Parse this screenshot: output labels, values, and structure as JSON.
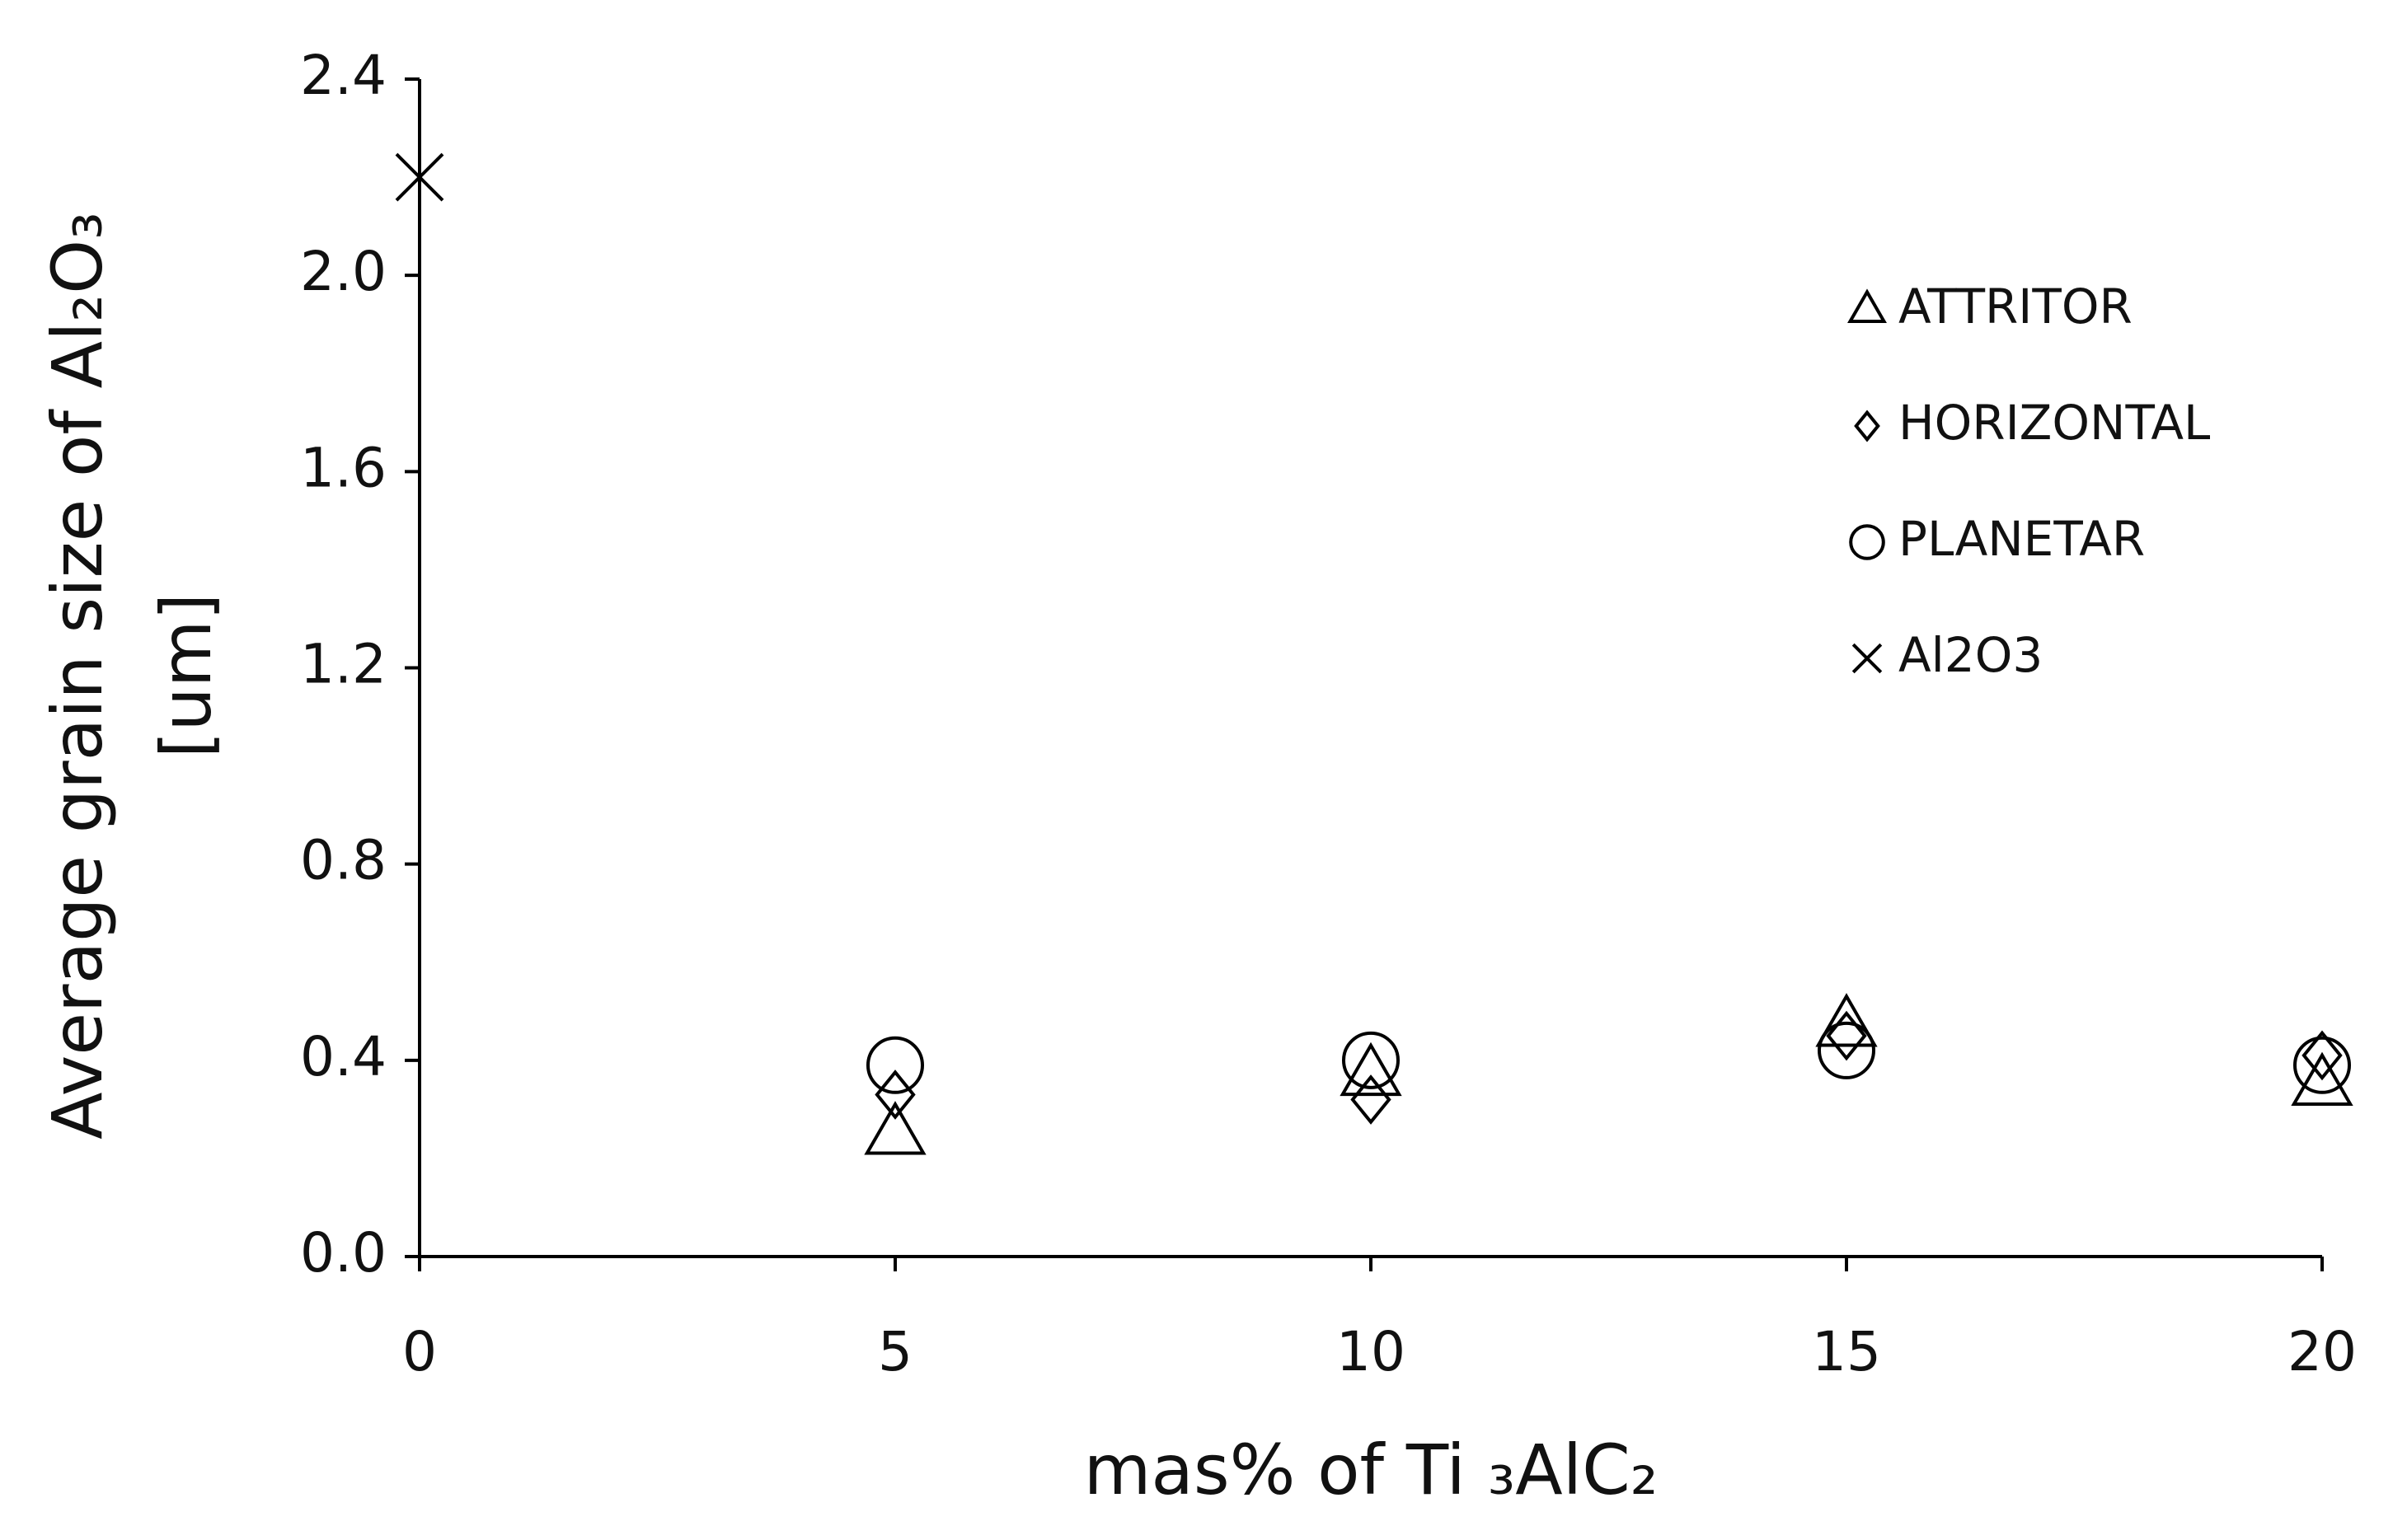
{
  "chart_data": {
    "type": "scatter",
    "x_label": "mas% of Ti ₃AlC₂",
    "y_label": [
      "Average grain size of Al₂O₃",
      "[um]"
    ],
    "xlim": [
      0,
      20
    ],
    "xticks": [
      0,
      5,
      10,
      15,
      20
    ],
    "ylim": [
      0,
      2.4
    ],
    "yticks": [
      {
        "value": 0,
        "label": "0.0"
      },
      0.4,
      0.8,
      1.2,
      1.6,
      {
        "value": 2,
        "label": "2.0"
      },
      2.4
    ],
    "legend": "upper right",
    "series": [
      {
        "name": "ATTRITOR",
        "color": "#000000",
        "marker": "triangle",
        "x": [
          5,
          10,
          15,
          20
        ],
        "values": [
          0.25,
          0.37,
          0.47,
          0.35
        ]
      },
      {
        "name": "HORIZONTAL",
        "color": "#000000",
        "marker": "diamond",
        "x": [
          5,
          10,
          15,
          20
        ],
        "values": [
          0.33,
          0.32,
          0.45,
          0.41
        ]
      },
      {
        "name": "PLANETAR",
        "color": "#000000",
        "marker": "circle",
        "x": [
          5,
          10,
          15,
          20
        ],
        "values": [
          0.39,
          0.4,
          0.42,
          0.39
        ]
      },
      {
        "name": "Al2O3",
        "color": "#000000",
        "marker": "cross",
        "x": [
          0
        ],
        "values": [
          2.2
        ]
      }
    ]
  }
}
